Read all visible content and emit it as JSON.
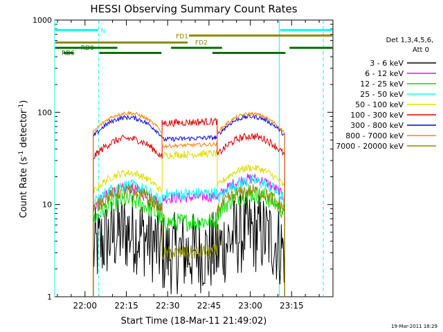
{
  "chart_data": {
    "type": "line",
    "title": "HESSI Observing Summary Count Rates",
    "xlabel": "Start Time (18-Mar-11 21:49:02)",
    "ylabel_main": "Count Rate (s",
    "ylabel_sup1": "-1",
    "ylabel_mid": " detector",
    "ylabel_sup2": "-1",
    "ylabel_end": ")",
    "yscale": "log",
    "ylim": [
      1,
      1000
    ],
    "xlim_minutes": [
      -11,
      90
    ],
    "x_ticks": [
      {
        "minute": 0,
        "label": "22:00"
      },
      {
        "minute": 15,
        "label": "22:15"
      },
      {
        "minute": 30,
        "label": "22:30"
      },
      {
        "minute": 45,
        "label": "22:45"
      },
      {
        "minute": 60,
        "label": "23:00"
      },
      {
        "minute": 75,
        "label": "23:15"
      }
    ],
    "y_ticks": [
      {
        "value": 1,
        "label": "1"
      },
      {
        "value": 10,
        "label": "10"
      },
      {
        "value": 100,
        "label": "100"
      },
      {
        "value": 1000,
        "label": "1000"
      }
    ],
    "legend_header": [
      "Det 1,3,4,5,6,",
      "Att 0"
    ],
    "legend_placement": "right",
    "date_stamp": "19-Mar-2011 18:29",
    "segments_minutes": [
      [
        3,
        28
      ],
      [
        28,
        48
      ],
      [
        48,
        72.5
      ]
    ],
    "series": [
      {
        "name": "3 - 6 keV",
        "color": "#000000",
        "values": [
          5.0,
          3.0,
          5.0
        ],
        "noise": 0.45
      },
      {
        "name": "6 - 12 keV",
        "color": "#ff00ff",
        "values": [
          15,
          12,
          19
        ],
        "noise": 0.06
      },
      {
        "name": "12 - 25 keV",
        "color": "#00e000",
        "values": [
          11,
          6.5,
          13
        ],
        "noise": 0.1
      },
      {
        "name": "25 - 50 keV",
        "color": "#00ffff",
        "values": [
          16,
          13,
          18
        ],
        "noise": 0.07
      },
      {
        "name": "50 - 100 keV",
        "color": "#dddd00",
        "values": [
          22,
          35,
          25
        ],
        "noise": 0.04
      },
      {
        "name": "100 - 300 keV",
        "color": "#e00000",
        "values": [
          52,
          78,
          55
        ],
        "noise": 0.04
      },
      {
        "name": "300 - 800 keV",
        "color": "#0000ff",
        "values": [
          88,
          52,
          90
        ],
        "noise": 0.025
      },
      {
        "name": "800 - 7000 keV",
        "color": "#ff8000",
        "values": [
          98,
          44,
          96
        ],
        "noise": 0.02
      },
      {
        "name": "7000 - 20000 keV",
        "color": "#8b8b00",
        "values": [
          14,
          3.0,
          14
        ],
        "noise": 0.08
      }
    ],
    "annotations": {
      "night": {
        "label": "N",
        "color": "#00ffff",
        "intervals": [
          [
            -11,
            5
          ],
          [
            70.5,
            90
          ]
        ],
        "y_value": 780
      },
      "fd1": {
        "label": "FD1",
        "color": "#8b8b00",
        "intervals": [
          [
            37.5,
            90
          ]
        ],
        "y_value": 680,
        "label_at": 33
      },
      "fd2": {
        "label": "FD2",
        "color": "#8b8b00",
        "intervals": [
          [
            -11,
            37.5
          ]
        ],
        "y_value": 570,
        "label_at": 40
      },
      "rd0": {
        "label": "RD0",
        "color": "#007000",
        "intervals": [
          [
            -11,
            12
          ],
          [
            31,
            50
          ],
          [
            74,
            90
          ]
        ],
        "y_value": 500,
        "label_at": -1.5
      },
      "rd6": {
        "label": "RD6",
        "color": "#007000",
        "intervals": [
          [
            -8,
            -4
          ],
          [
            5,
            28
          ],
          [
            46,
            73
          ]
        ],
        "y_value": 440,
        "label_at": -8.5
      }
    },
    "vlines": [
      {
        "minute": -11,
        "color": "#00ffff",
        "style": "solid"
      },
      {
        "minute": 5,
        "color": "#00ffff",
        "style": "dashed"
      },
      {
        "minute": 70.5,
        "color": "#00ffff",
        "style": "solid"
      },
      {
        "minute": 86.5,
        "color": "#00ffff",
        "style": "dashed"
      }
    ]
  }
}
